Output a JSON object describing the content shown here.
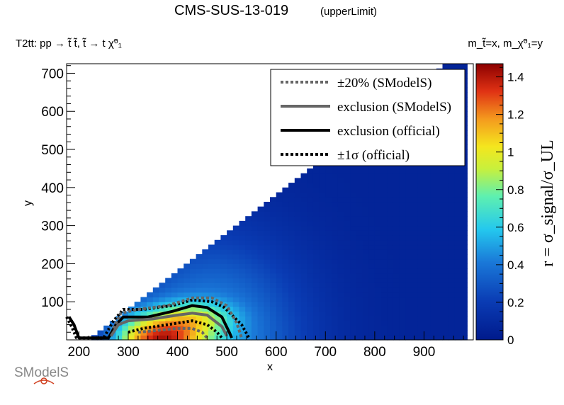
{
  "header": {
    "title": "CMS-SUS-13-019",
    "subtitle": "(upperLimit)",
    "process_label": "T2tt: pp → t̃ t̃, t̃ → t χ̃⁰₁",
    "mass_definition": "m_t̃=x, m_χ̃⁰₁=y"
  },
  "logo": {
    "text": "SModelS"
  },
  "chart_data": {
    "type": "heatmap",
    "xlabel": "x",
    "ylabel": "y",
    "zlabel": "r = σ_signal/σ_UL",
    "xlim": [
      175,
      1000
    ],
    "ylim": [
      0,
      725
    ],
    "zlim": [
      0,
      1.47
    ],
    "x_ticks": [
      200,
      300,
      400,
      500,
      600,
      700,
      800,
      900
    ],
    "y_ticks": [
      100,
      200,
      300,
      400,
      500,
      600,
      700
    ],
    "z_ticks": [
      0,
      0.2,
      0.4,
      0.6,
      0.8,
      1,
      1.2,
      1.4
    ],
    "colormap": "ROOT rainbow (dark blue → cyan → green → yellow → orange → dark red)",
    "grid": false,
    "legend": {
      "position": "top-right",
      "entries": [
        {
          "label": "±20% (SModelS)",
          "color": "#666666",
          "style": "dotted"
        },
        {
          "label": "exclusion (SModelS)",
          "color": "#666666",
          "style": "solid"
        },
        {
          "label": "exclusion (official)",
          "color": "#000000",
          "style": "solid"
        },
        {
          "label": "±1σ (official)",
          "color": "#000000",
          "style": "dotted"
        }
      ]
    },
    "contours": {
      "exclusion_official": [
        [
          180,
          60
        ],
        [
          190,
          40
        ],
        [
          200,
          5
        ],
        [
          260,
          5
        ],
        [
          275,
          40
        ],
        [
          290,
          60
        ],
        [
          340,
          60
        ],
        [
          390,
          75
        ],
        [
          430,
          90
        ],
        [
          460,
          85
        ],
        [
          490,
          60
        ],
        [
          505,
          20
        ],
        [
          510,
          5
        ]
      ],
      "plus1sigma_official": [
        [
          175,
          60
        ],
        [
          185,
          35
        ],
        [
          195,
          5
        ],
        [
          250,
          5
        ],
        [
          270,
          50
        ],
        [
          290,
          80
        ],
        [
          330,
          80
        ],
        [
          390,
          90
        ],
        [
          430,
          105
        ],
        [
          470,
          100
        ],
        [
          495,
          85
        ],
        [
          530,
          40
        ],
        [
          545,
          5
        ]
      ],
      "minus1sigma_official": [
        [
          300,
          20
        ],
        [
          330,
          30
        ],
        [
          380,
          40
        ],
        [
          430,
          50
        ],
        [
          460,
          40
        ],
        [
          480,
          20
        ],
        [
          490,
          5
        ]
      ],
      "exclusion_smodels": [
        [
          265,
          10
        ],
        [
          280,
          40
        ],
        [
          300,
          50
        ],
        [
          350,
          55
        ],
        [
          400,
          65
        ],
        [
          430,
          70
        ],
        [
          460,
          65
        ],
        [
          490,
          35
        ],
        [
          500,
          10
        ]
      ],
      "plus20_smodels": [
        [
          270,
          30
        ],
        [
          285,
          70
        ],
        [
          320,
          80
        ],
        [
          380,
          90
        ],
        [
          430,
          110
        ],
        [
          470,
          110
        ],
        [
          500,
          90
        ],
        [
          520,
          45
        ],
        [
          530,
          5
        ]
      ],
      "minus20_smodels": [
        [
          320,
          20
        ],
        [
          360,
          25
        ],
        [
          400,
          30
        ],
        [
          430,
          30
        ],
        [
          450,
          20
        ],
        [
          460,
          5
        ]
      ]
    }
  }
}
